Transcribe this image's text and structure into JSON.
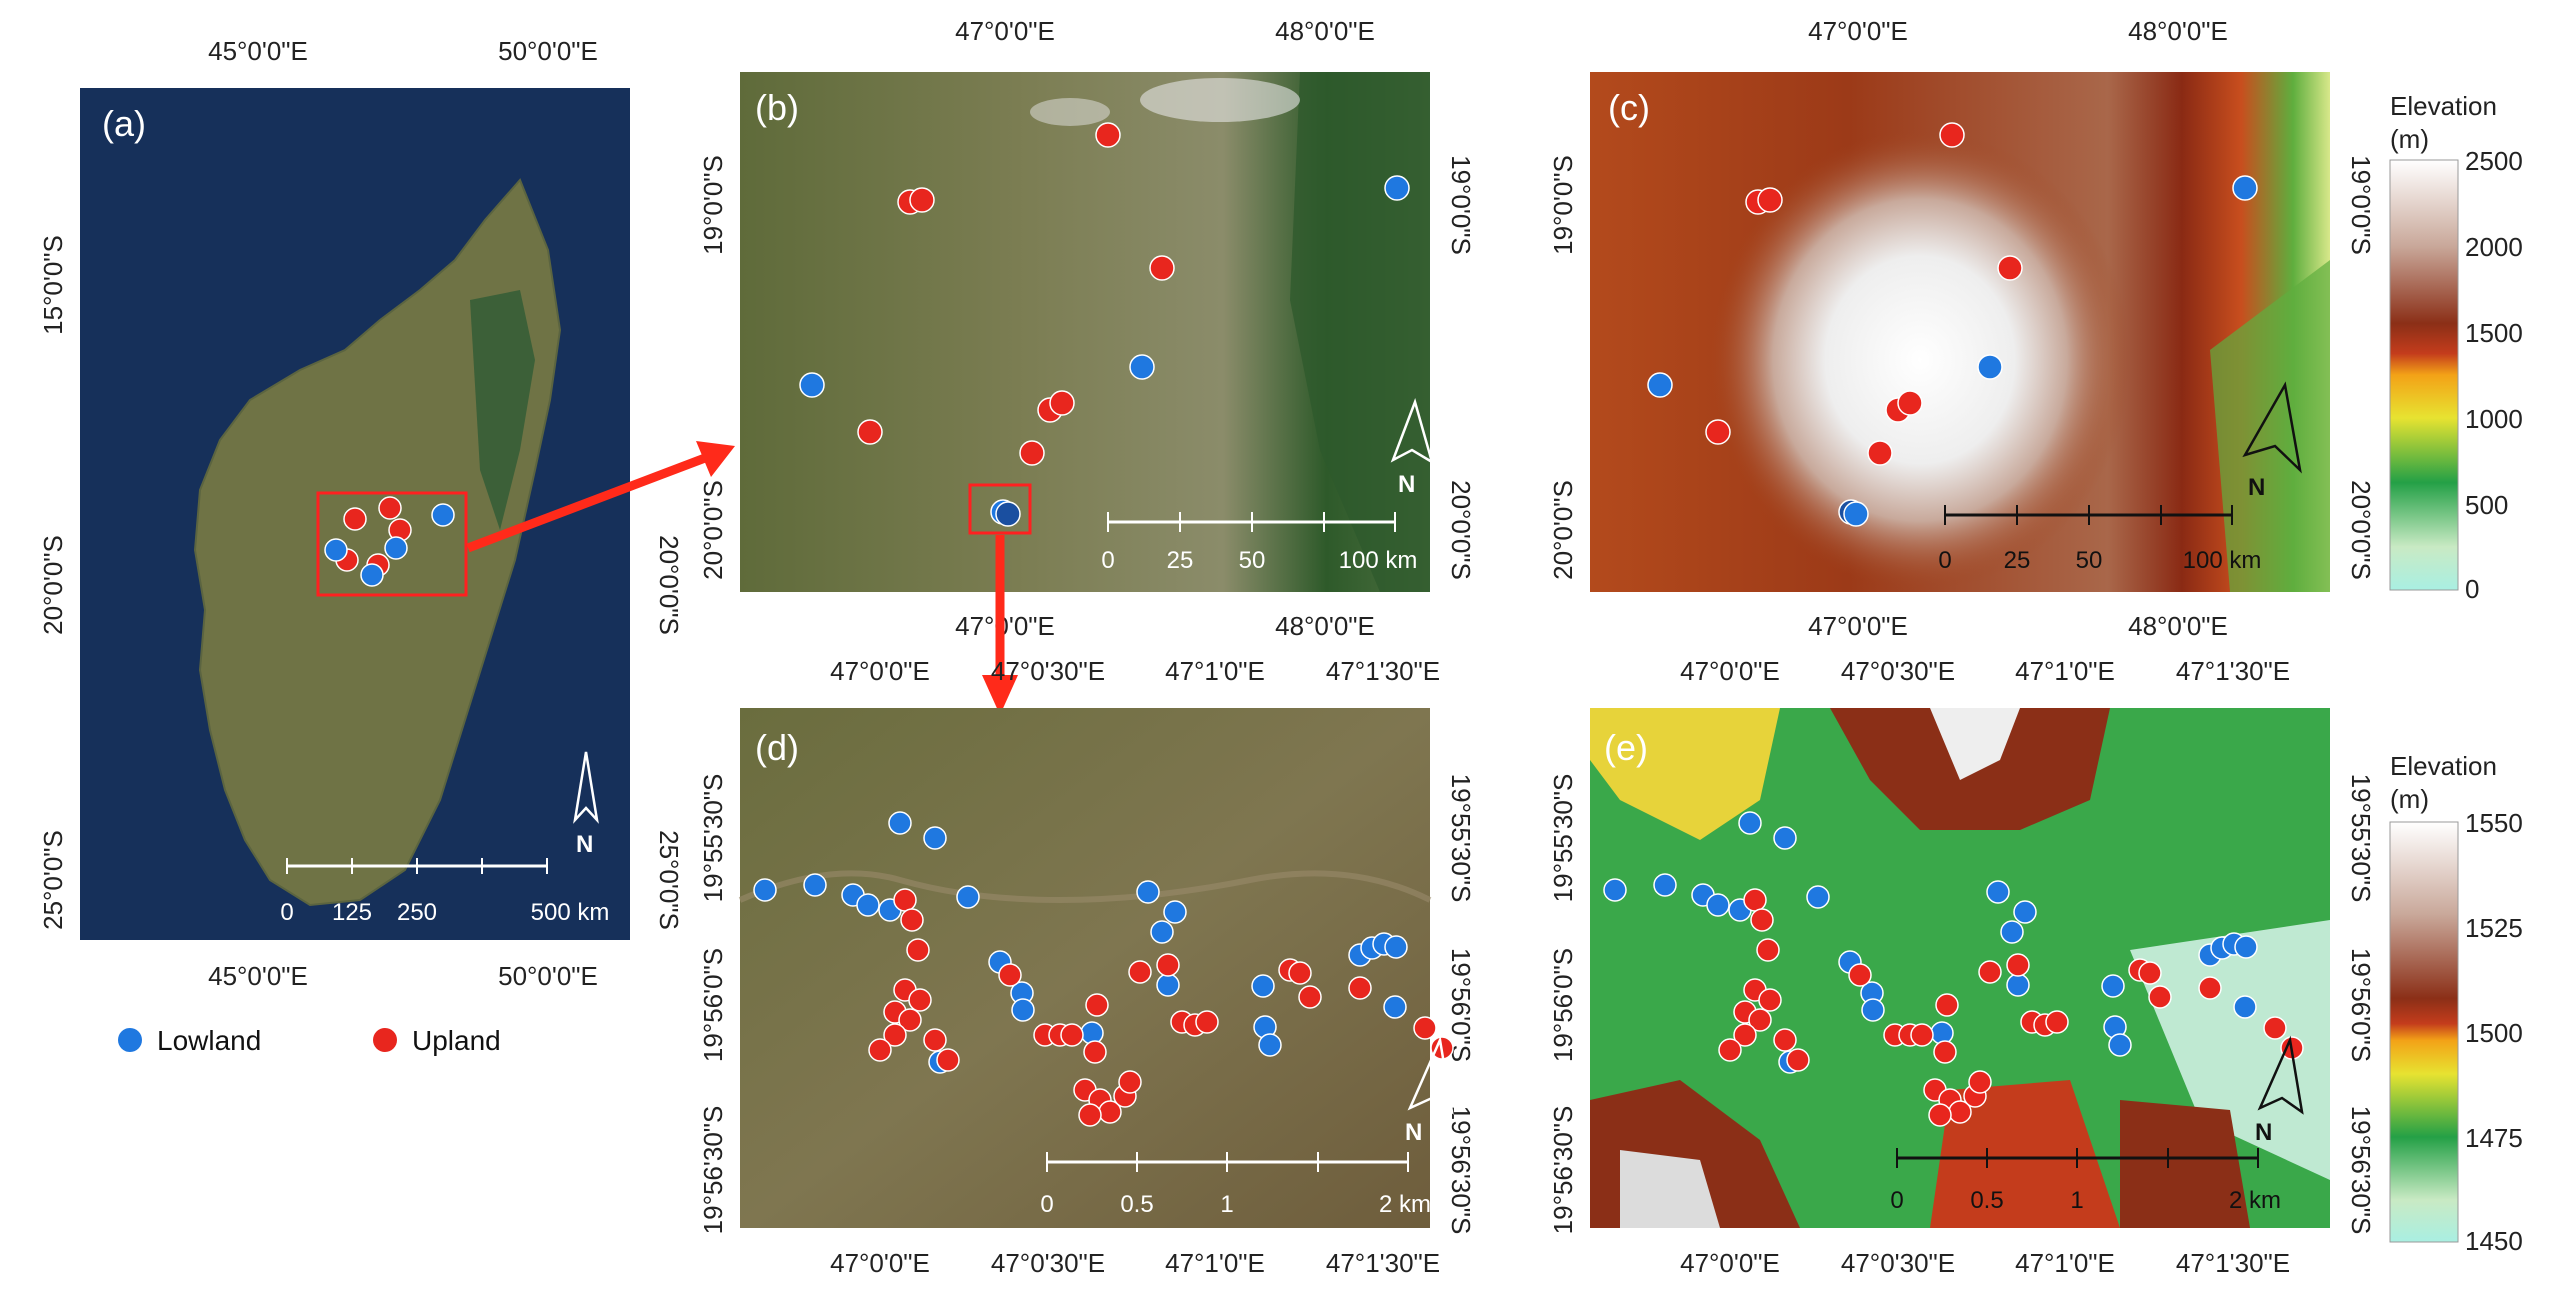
{
  "panels": {
    "a": {
      "letter": "(a)",
      "lon_ticks": [
        "45°0'0\"E",
        "50°0'0\"E"
      ],
      "lat_ticks": [
        "15°0'0\"S",
        "20°0'0\"S",
        "25°0'0\"S"
      ],
      "scale_labels": [
        "0",
        "125",
        "250",
        "500 km"
      ],
      "north": "N"
    },
    "b": {
      "letter": "(b)",
      "lon_ticks": [
        "47°0'0\"E",
        "48°0'0\"E"
      ],
      "lat_ticks": [
        "19°0'0\"S",
        "20°0'0\"S"
      ],
      "scale_labels": [
        "0",
        "25",
        "50",
        "100 km"
      ],
      "north": "N"
    },
    "c": {
      "letter": "(c)",
      "lon_ticks": [
        "47°0'0\"E",
        "48°0'0\"E"
      ],
      "lat_ticks": [
        "19°0'0\"S",
        "20°0'0\"S"
      ],
      "scale_labels": [
        "0",
        "25",
        "50",
        "100 km"
      ],
      "north": "N"
    },
    "d": {
      "letter": "(d)",
      "lon_ticks": [
        "47°0'0\"E",
        "47°0'30\"E",
        "47°1'0\"E",
        "47°1'30\"E"
      ],
      "lat_ticks": [
        "19°55'30\"S",
        "19°56'0\"S",
        "19°56'30\"S"
      ],
      "scale_labels": [
        "0",
        "0.5",
        "1",
        "2 km"
      ],
      "north": "N"
    },
    "e": {
      "letter": "(e)",
      "lon_ticks": [
        "47°0'0\"E",
        "47°0'30\"E",
        "47°1'0\"E",
        "47°1'30\"E"
      ],
      "lat_ticks": [
        "19°55'30\"S",
        "19°56'0\"S",
        "19°56'30\"S"
      ],
      "scale_labels": [
        "0",
        "0.5",
        "1",
        "2 km"
      ],
      "north": "N"
    }
  },
  "legend": {
    "lowland": {
      "label": "Lowland",
      "color": "#1f78e0"
    },
    "upland": {
      "label": "Upland",
      "color": "#e8261e"
    }
  },
  "colorbars": {
    "top": {
      "title_line1": "Elevation",
      "title_line2": "(m)",
      "ticks": [
        "2500",
        "2000",
        "1500",
        "1000",
        "500",
        "0"
      ]
    },
    "bottom": {
      "title_line1": "Elevation",
      "title_line2": "(m)",
      "ticks": [
        "1550",
        "1525",
        "1500",
        "1475",
        "1450"
      ]
    }
  },
  "colors": {
    "ocean": "#16305a",
    "satellite": "#7a7a4a",
    "frame_highlight": "#ff2020",
    "arrow": "#ff2a1a"
  }
}
